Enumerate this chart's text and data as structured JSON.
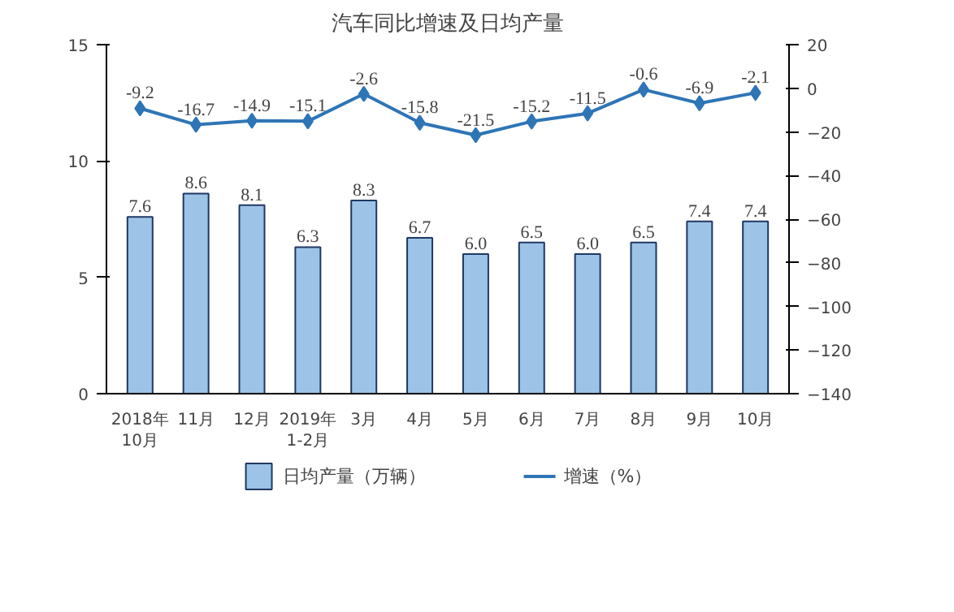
{
  "chart_data": {
    "type": "bar",
    "title": "汽车同比增速及日均产量",
    "categories": [
      "2018年\n10月",
      "11月",
      "12月",
      "2019年\n1-2月",
      "3月",
      "4月",
      "5月",
      "6月",
      "7月",
      "8月",
      "9月",
      "10月"
    ],
    "series": [
      {
        "name": "日均产量（万辆）",
        "color": "#9dc3e6",
        "values": [
          7.6,
          8.6,
          8.1,
          6.3,
          8.3,
          6.7,
          6.0,
          6.5,
          6.0,
          6.5,
          7.4,
          7.4
        ],
        "value_labels": [
          "7.6",
          "8.6",
          "8.1",
          "6.3",
          "8.3",
          "6.7",
          "6.0",
          "6.5",
          "6.0",
          "6.5",
          "7.4",
          "7.4"
        ]
      },
      {
        "name": "增速（%）",
        "type": "line",
        "axis": "y2",
        "color": "#2e75b6",
        "values": [
          -9.2,
          -16.7,
          -14.9,
          -15.1,
          -2.6,
          -15.8,
          -21.5,
          -15.2,
          -11.5,
          -0.6,
          -6.9,
          -2.1
        ]
      }
    ],
    "ylim": [
      0,
      15
    ],
    "yticks": [
      0,
      5,
      10,
      15
    ],
    "y2lim": [
      -140,
      20
    ],
    "y2ticks": [
      -140,
      -120,
      -100,
      -80,
      -60,
      -40,
      -20,
      0,
      20
    ],
    "data_labels": true,
    "marker": "diamond",
    "line_style": "solid",
    "grid": false,
    "legend": "bottom"
  }
}
